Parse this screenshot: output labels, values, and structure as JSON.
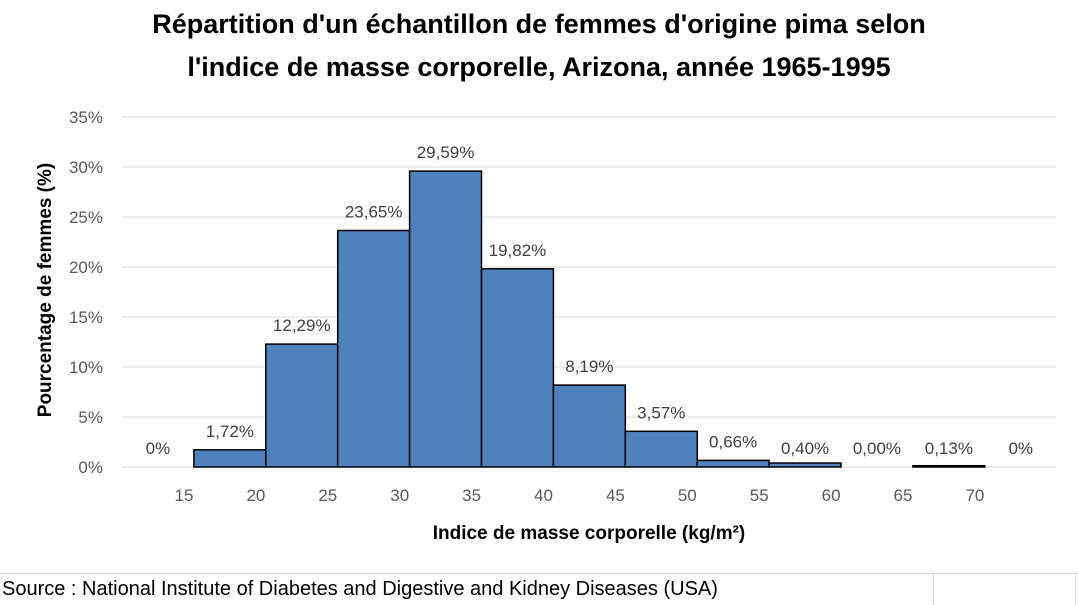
{
  "chart_data": {
    "type": "bar",
    "title_line1": "Répartition d'un échantillon de femmes d'origine pima selon",
    "title_line2": "l'indice de masse corporelle, Arizona, année 1965-1995",
    "xlabel": "Indice de masse corporelle (kg/m²)",
    "ylabel": "Pourcentage de femmes (%)",
    "ylim": [
      0,
      35
    ],
    "y_ticks": [
      "0%",
      "5%",
      "10%",
      "15%",
      "20%",
      "25%",
      "30%",
      "35%"
    ],
    "x_ticks": [
      "15",
      "20",
      "25",
      "30",
      "35",
      "40",
      "45",
      "50",
      "55",
      "60",
      "65",
      "70"
    ],
    "grid": true,
    "bar_color": "#4f81bd",
    "values": [
      0,
      1.72,
      12.29,
      23.65,
      29.59,
      19.82,
      8.19,
      3.57,
      0.66,
      0.4,
      0.0,
      0.13,
      0
    ],
    "data_labels": [
      "0%",
      "1,72%",
      "12,29%",
      "23,65%",
      "29,59%",
      "19,82%",
      "8,19%",
      "3,57%",
      "0,66%",
      "0,40%",
      "0,00%",
      "0,13%",
      "0%"
    ]
  },
  "source": "Source : National Institute of Diabetes and Digestive and Kidney Diseases (USA)"
}
